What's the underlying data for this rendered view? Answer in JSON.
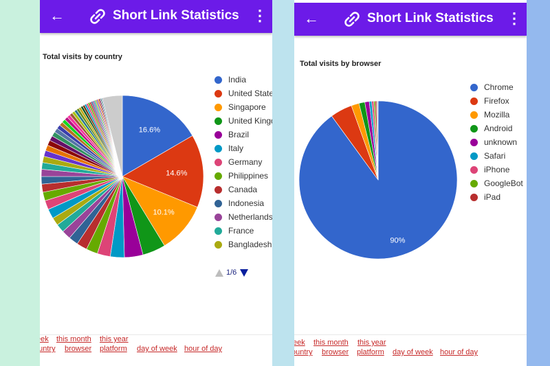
{
  "app": {
    "title": "Short Link Statistics",
    "colors": {
      "appbar": "#6c1be8",
      "link": "#c62828"
    },
    "icons": {
      "back": "arrow-left-icon",
      "logo": "link-icon",
      "menu": "more-vert-icon"
    }
  },
  "screens": [
    {
      "chart_title": "Total visits by country",
      "pager": {
        "text": "1/6"
      },
      "links": {
        "row1": [
          "eek",
          "this month",
          "this year"
        ],
        "row2": [
          "ountry",
          "browser",
          "platform",
          "day of week",
          "hour of day"
        ]
      }
    },
    {
      "chart_title": "Total visits by browser",
      "links": {
        "row1": [
          "eek",
          "this month",
          "this year"
        ],
        "row2": [
          "ountry",
          "browser",
          "platform",
          "day of week",
          "hour of day"
        ]
      }
    }
  ],
  "chart_data": [
    {
      "type": "pie",
      "title": "Total visits by country",
      "legend_position": "right",
      "slices": [
        {
          "label": "India",
          "value": 16.6,
          "color": "#3366cc",
          "data_label": "16.6%"
        },
        {
          "label": "United States",
          "value": 14.6,
          "color": "#dc3912",
          "data_label": "14.6%"
        },
        {
          "label": "Singapore",
          "value": 10.1,
          "color": "#ff9900",
          "data_label": "10.1%"
        },
        {
          "label": "United Kingdom",
          "value": 4.6,
          "color": "#109618"
        },
        {
          "label": "Brazil",
          "value": 3.7,
          "color": "#990099"
        },
        {
          "label": "Italy",
          "value": 2.8,
          "color": "#0099c6"
        },
        {
          "label": "Germany",
          "value": 2.6,
          "color": "#dd4477"
        },
        {
          "label": "Philippines",
          "value": 2.3,
          "color": "#66aa00"
        },
        {
          "label": "Canada",
          "value": 2.1,
          "color": "#b82e2e"
        },
        {
          "label": "Indonesia",
          "value": 1.9,
          "color": "#316395"
        },
        {
          "label": "Netherlands",
          "value": 1.8,
          "color": "#994499"
        },
        {
          "label": "France",
          "value": 1.7,
          "color": "#22aa99"
        },
        {
          "label": "Bangladesh",
          "value": 1.6,
          "color": "#aaaa11"
        }
      ],
      "other_slices": {
        "count": 40,
        "total": 29.6
      },
      "remaining": {
        "value": 4.0,
        "color": "#cccccc"
      }
    },
    {
      "type": "pie",
      "title": "Total visits by browser",
      "legend_position": "right",
      "slices": [
        {
          "label": "Chrome",
          "value": 90,
          "color": "#3366cc",
          "data_label": "90%"
        },
        {
          "label": "Firefox",
          "value": 4.5,
          "color": "#dc3912"
        },
        {
          "label": "Mozilla",
          "value": 1.6,
          "color": "#ff9900"
        },
        {
          "label": "Android",
          "value": 1.2,
          "color": "#109618"
        },
        {
          "label": "unknown",
          "value": 0.9,
          "color": "#990099"
        },
        {
          "label": "Safari",
          "value": 0.5,
          "color": "#0099c6"
        },
        {
          "label": "iPhone",
          "value": 0.4,
          "color": "#dd4477"
        },
        {
          "label": "GoogleBot",
          "value": 0.3,
          "color": "#66aa00"
        },
        {
          "label": "iPad",
          "value": 0.3,
          "color": "#b82e2e"
        }
      ],
      "remaining": {
        "value": 0.3,
        "color": "#cccccc"
      }
    }
  ]
}
